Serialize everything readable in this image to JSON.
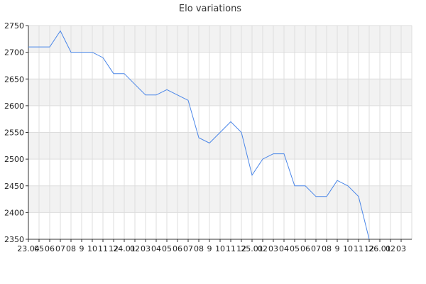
{
  "chart_data": {
    "type": "line",
    "title": "Elo variations",
    "xlabel": "",
    "ylabel": "",
    "ylim": [
      2350,
      2750
    ],
    "yticks": [
      2350,
      2400,
      2450,
      2500,
      2550,
      2600,
      2650,
      2700,
      2750
    ],
    "grid": true,
    "line_color": "#4a86e8",
    "band_color": "#f2f2f2",
    "grid_color": "#dddddd",
    "x_tick_labels": [
      "23.04",
      "05",
      "06",
      "07",
      "08",
      "9",
      "10",
      "11",
      "12",
      "24.01",
      "02",
      "03",
      "04",
      "05",
      "06",
      "07",
      "08",
      "9",
      "10",
      "11",
      "12",
      "25.01",
      "02",
      "03",
      "04",
      "05",
      "06",
      "07",
      "08",
      "9",
      "10",
      "11",
      "12",
      "26.01",
      "02",
      "03"
    ],
    "values": [
      2710,
      2710,
      2710,
      2740,
      2700,
      2700,
      2700,
      2690,
      2660,
      2660,
      2640,
      2620,
      2620,
      2630,
      2620,
      2610,
      2540,
      2530,
      2550,
      2570,
      2550,
      2470,
      2500,
      2510,
      2510,
      2450,
      2450,
      2430,
      2430,
      2460,
      2450,
      2430,
      2350,
      null,
      null,
      null
    ]
  }
}
